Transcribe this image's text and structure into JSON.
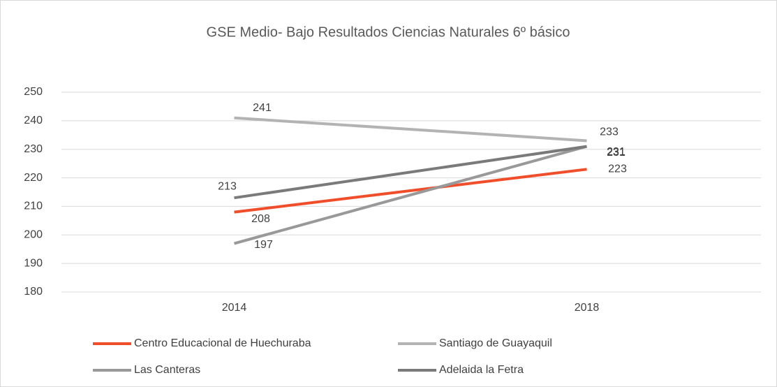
{
  "chart_data": {
    "type": "line",
    "title": "GSE Medio- Bajo Resultados Ciencias Naturales 6º básico",
    "categories": [
      "2014",
      "2018"
    ],
    "series": [
      {
        "name": "Centro Educacional de Huechuraba",
        "color": "#f04e2a",
        "values": [
          208,
          223
        ]
      },
      {
        "name": "Santiago de Guayaquil",
        "color": "#b3b3b3",
        "values": [
          241,
          233
        ]
      },
      {
        "name": "Las Canteras",
        "color": "#999999",
        "values": [
          197,
          231
        ]
      },
      {
        "name": "Adelaida la Fetra",
        "color": "#7a7a7a",
        "values": [
          213,
          231
        ]
      }
    ],
    "ylim": [
      180,
      250
    ],
    "yticks": [
      180,
      190,
      200,
      210,
      220,
      230,
      240,
      250
    ],
    "grid": true,
    "legend": "bottom",
    "data_labels": true
  }
}
